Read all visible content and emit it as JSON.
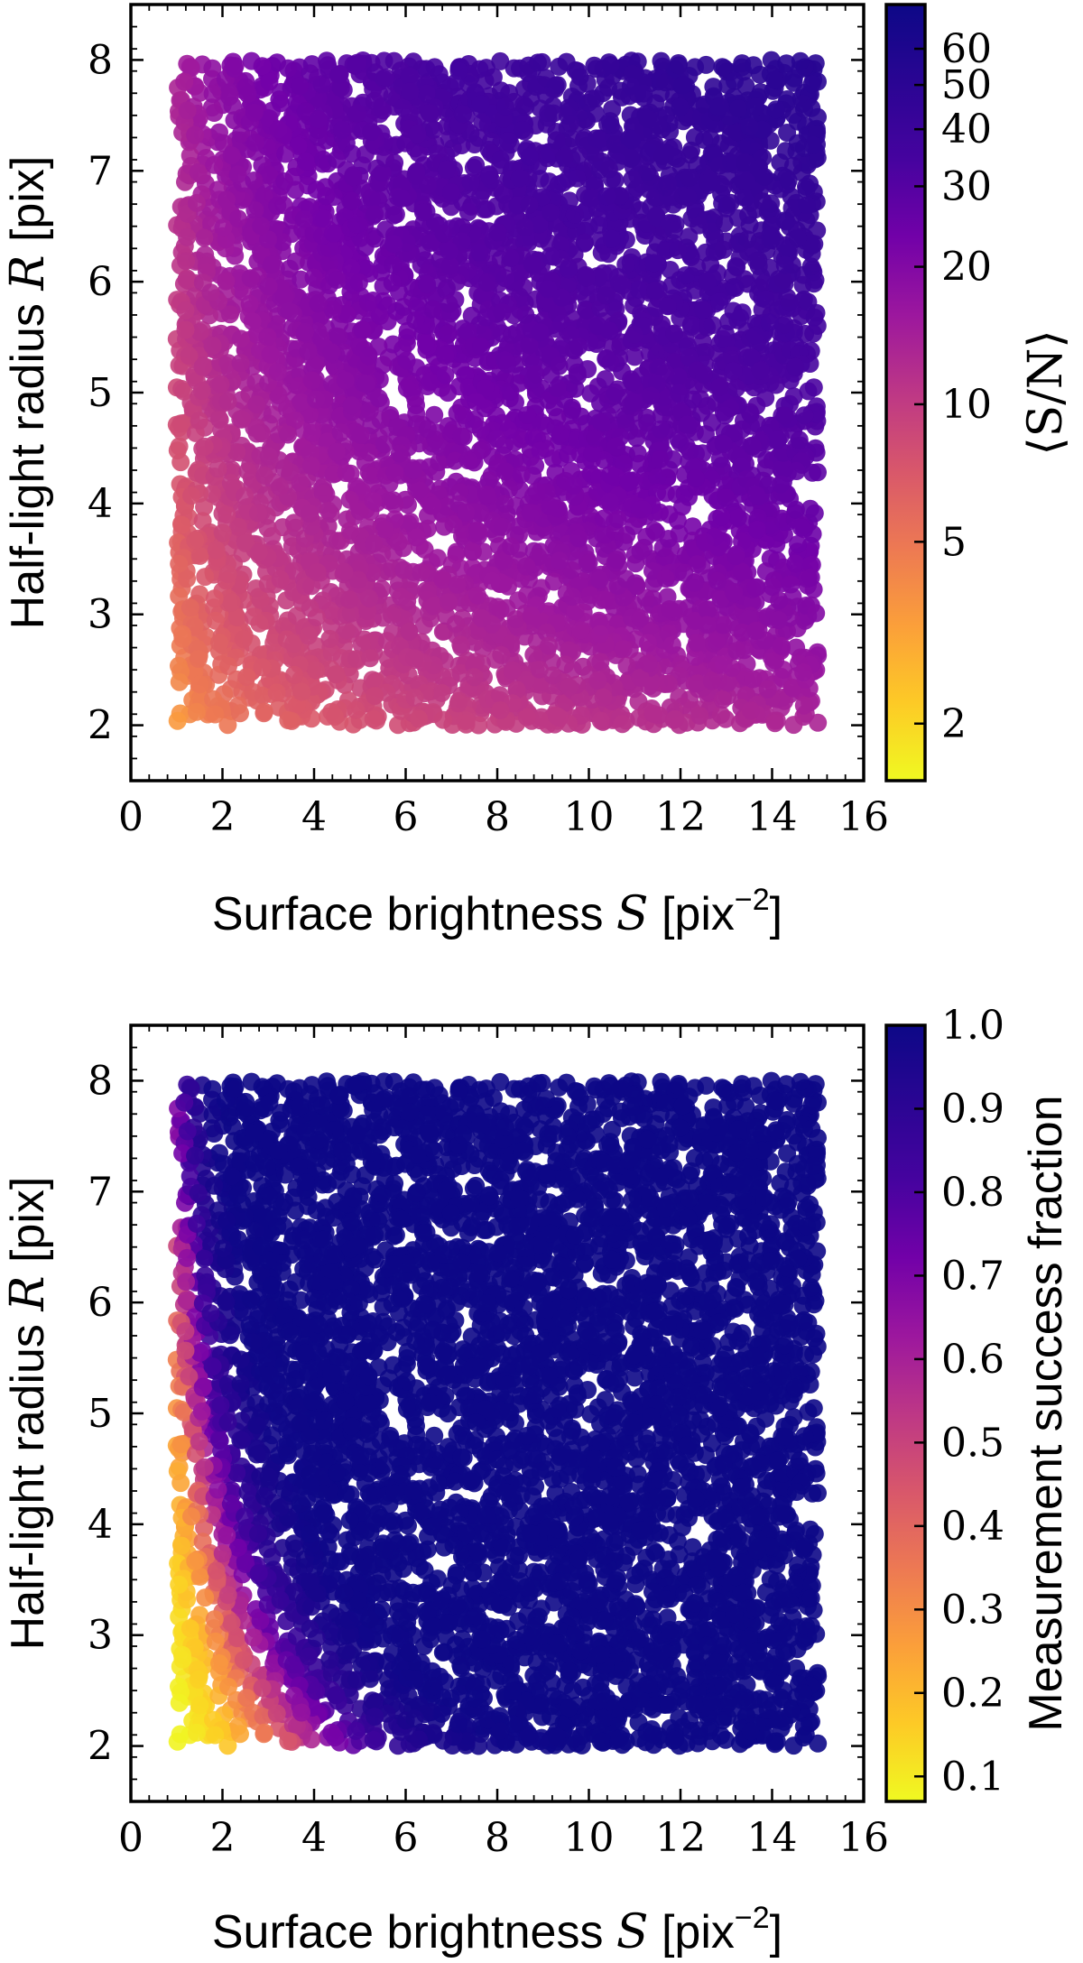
{
  "chart_data": [
    {
      "type": "scatter",
      "title": "",
      "xlabel": "Surface brightness",
      "xlabel_symbol": "S",
      "xlabel_unit_prefix": "[pix",
      "xlabel_unit_exp": "−2",
      "xlabel_unit_suffix": "]",
      "ylabel": "Half-light radius",
      "ylabel_symbol": "R",
      "ylabel_unit": "[pix]",
      "xlim": [
        0,
        16
      ],
      "ylim": [
        1.5,
        8.5
      ],
      "xticks": [
        "0",
        "2",
        "4",
        "6",
        "8",
        "10",
        "12",
        "14",
        "16"
      ],
      "yticks": [
        "2",
        "3",
        "4",
        "5",
        "6",
        "7",
        "8"
      ],
      "point_domain": {
        "x": [
          1,
          15
        ],
        "y": [
          2,
          8
        ]
      },
      "colormap": "plasma_r",
      "colorbar": {
        "label": "⟨S/N⟩",
        "scale": "log",
        "range": [
          1.5,
          75
        ],
        "ticks": [
          "2",
          "5",
          "10",
          "20",
          "30",
          "40",
          "50",
          "60"
        ]
      }
    },
    {
      "type": "scatter",
      "title": "",
      "xlabel": "Surface brightness",
      "xlabel_symbol": "S",
      "xlabel_unit_prefix": "[pix",
      "xlabel_unit_exp": "−2",
      "xlabel_unit_suffix": "]",
      "ylabel": "Half-light radius",
      "ylabel_symbol": "R",
      "ylabel_unit": "[pix]",
      "xlim": [
        0,
        16
      ],
      "ylim": [
        1.5,
        8.5
      ],
      "xticks": [
        "0",
        "2",
        "4",
        "6",
        "8",
        "10",
        "12",
        "14",
        "16"
      ],
      "yticks": [
        "2",
        "3",
        "4",
        "5",
        "6",
        "7",
        "8"
      ],
      "point_domain": {
        "x": [
          1,
          15
        ],
        "y": [
          2,
          8
        ]
      },
      "colormap": "plasma_r",
      "colorbar": {
        "label": "Measurement success fraction",
        "scale": "linear",
        "range": [
          0.07,
          1.0
        ],
        "ticks": [
          "0.1",
          "0.2",
          "0.3",
          "0.4",
          "0.5",
          "0.6",
          "0.7",
          "0.8",
          "0.9",
          "1.0"
        ]
      }
    }
  ]
}
